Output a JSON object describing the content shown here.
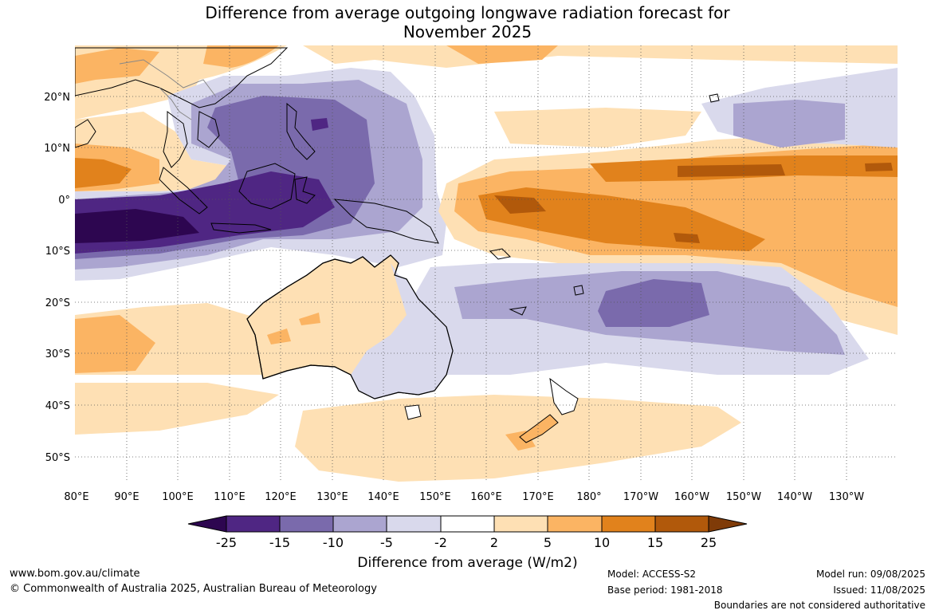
{
  "title": {
    "line1": "Difference from average outgoing longwave radiation forecast for",
    "line2": "November 2025"
  },
  "map": {
    "lat_labels": [
      "20°N",
      "10°N",
      "0°",
      "10°S",
      "20°S",
      "30°S",
      "40°S",
      "50°S"
    ],
    "lon_labels": [
      "80°E",
      "90°E",
      "100°E",
      "110°E",
      "120°E",
      "130°E",
      "140°E",
      "150°E",
      "160°E",
      "170°E",
      "180°",
      "170°W",
      "160°W",
      "150°W",
      "140°W",
      "130°W"
    ]
  },
  "colorbar": {
    "title": "Difference from average (W/m2)",
    "tick_labels": [
      "-25",
      "-15",
      "-10",
      "-5",
      "-2",
      "2",
      "5",
      "10",
      "15",
      "25"
    ],
    "bins": [
      {
        "from": -25,
        "to": -15,
        "color": "#4f2683"
      },
      {
        "from": -15,
        "to": -10,
        "color": "#7a6aac"
      },
      {
        "from": -10,
        "to": -5,
        "color": "#aba5d0"
      },
      {
        "from": -5,
        "to": -2,
        "color": "#d9d9ec"
      },
      {
        "from": -2,
        "to": 2,
        "color": "#ffffff"
      },
      {
        "from": 2,
        "to": 5,
        "color": "#fee0b4"
      },
      {
        "from": 5,
        "to": 10,
        "color": "#fbb463"
      },
      {
        "from": 10,
        "to": 15,
        "color": "#e1821c"
      },
      {
        "from": 15,
        "to": 25,
        "color": "#b1590b"
      }
    ],
    "below_color": "#2d0650",
    "above_color": "#7f3b08"
  },
  "footer": {
    "website": "www.bom.gov.au/climate",
    "copyright": "© Commonwealth of Australia 2025, Australian Bureau of Meteorology",
    "model": "Model: ACCESS-S2",
    "base_period": "Base period: 1981-2018",
    "model_run": "Model run: 09/08/2025",
    "issued": "Issued: 11/08/2025",
    "boundaries_note": "Boundaries are not considered authoritative"
  }
}
